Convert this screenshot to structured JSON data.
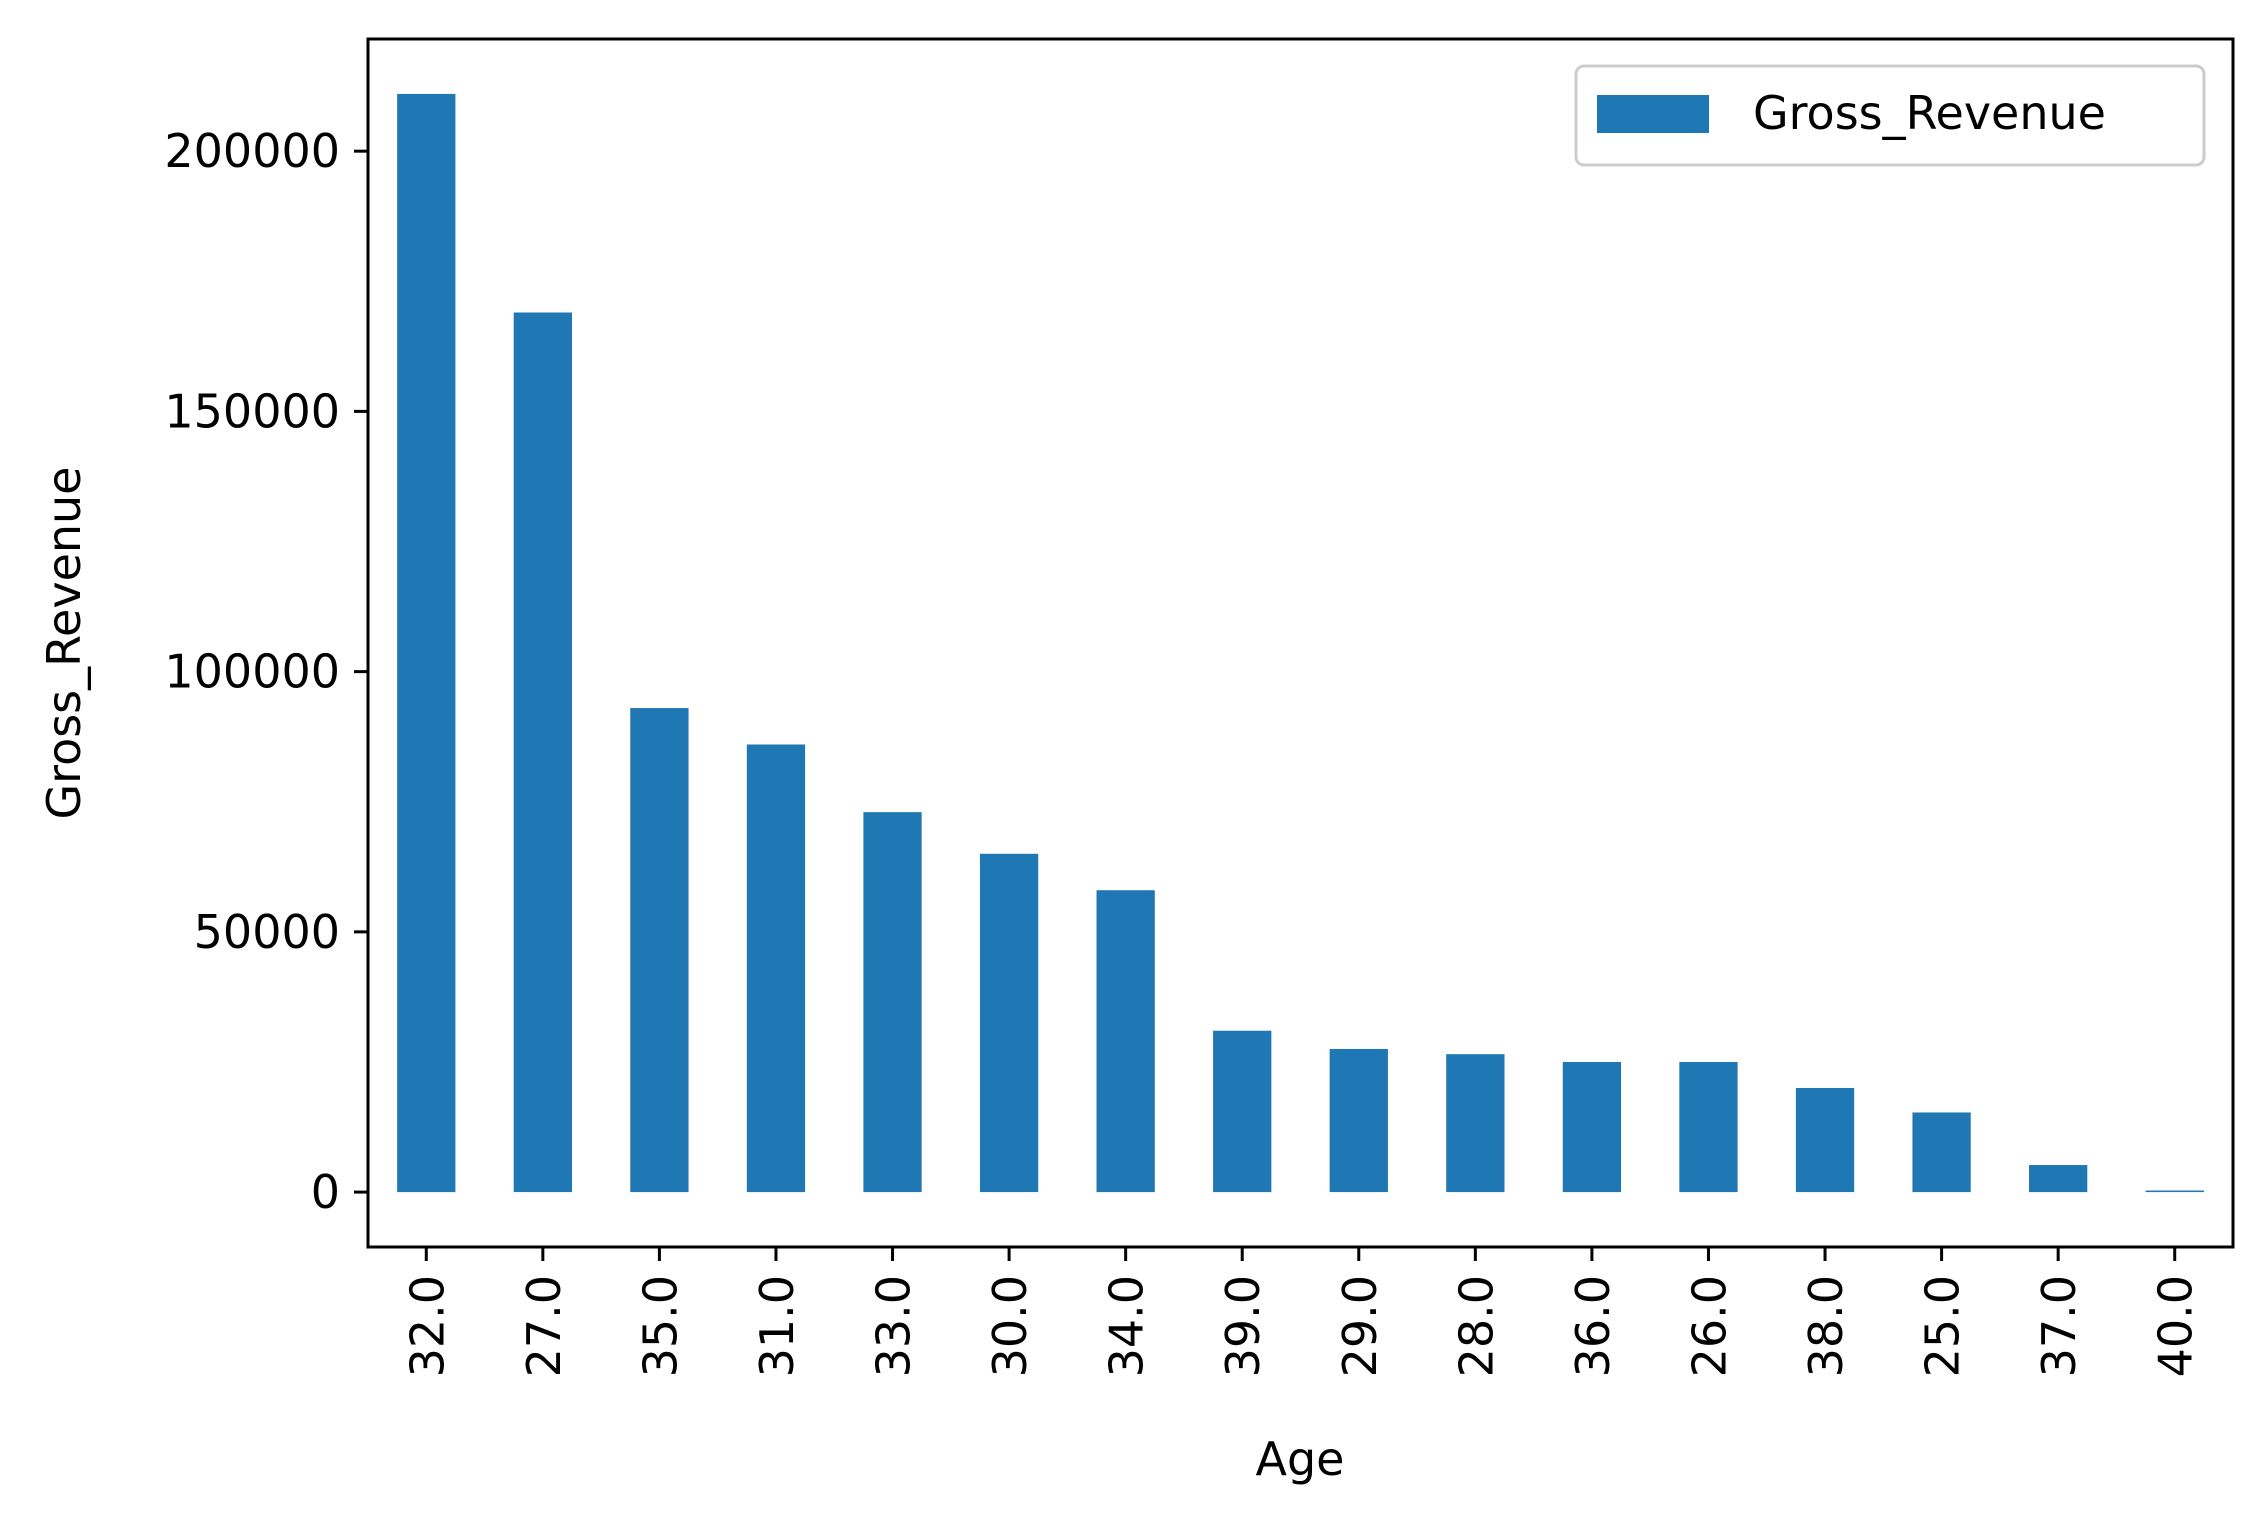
{
  "chart_data": {
    "type": "bar",
    "xlabel": "Age",
    "ylabel": "Gross_Revenue",
    "categories": [
      "32.0",
      "27.0",
      "35.0",
      "31.0",
      "33.0",
      "30.0",
      "34.0",
      "39.0",
      "29.0",
      "28.0",
      "36.0",
      "26.0",
      "38.0",
      "25.0",
      "37.0",
      "40.0"
    ],
    "series": [
      {
        "name": "Gross_Revenue",
        "color": "#1f77b4",
        "values": [
          211000,
          169000,
          93000,
          86000,
          73000,
          65000,
          58000,
          31000,
          27500,
          26500,
          25000,
          25000,
          20000,
          15300,
          5200,
          300
        ]
      }
    ],
    "ylim": [
      -10550,
      221550
    ],
    "yticks": [
      0,
      50000,
      100000,
      150000,
      200000
    ],
    "ytick_labels": [
      "0",
      "50000",
      "100000",
      "150000",
      "200000"
    ],
    "legend_position": "upper right",
    "grid": false
  }
}
